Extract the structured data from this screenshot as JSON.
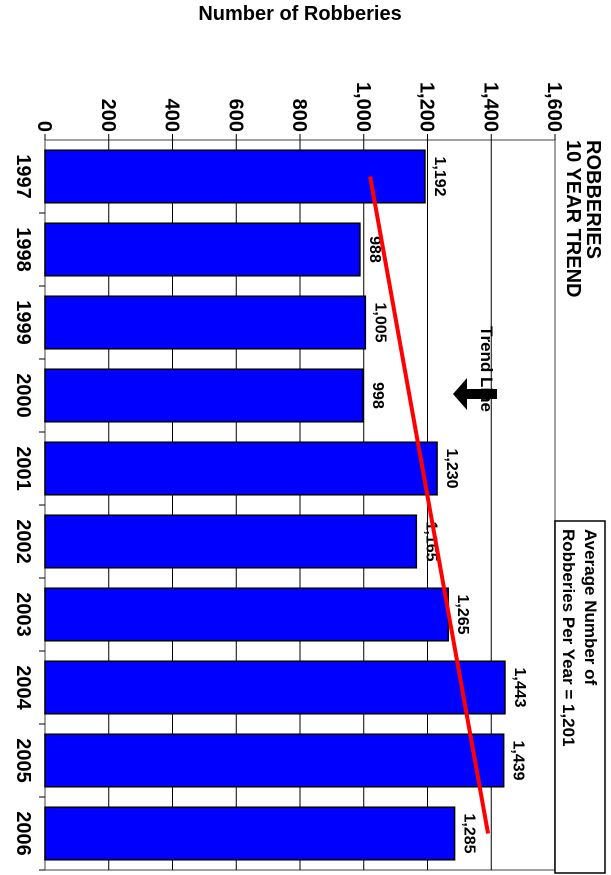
{
  "chart_data": {
    "type": "bar",
    "title": "ROBBERIES",
    "subtitle": "10 YEAR TREND",
    "ylabel": "Number of Robberies",
    "xlabel": "",
    "categories": [
      "1997",
      "1998",
      "1999",
      "2000",
      "2001",
      "2002",
      "2003",
      "2004",
      "2005",
      "2006"
    ],
    "values": [
      1192,
      988,
      1005,
      998,
      1230,
      1165,
      1265,
      1443,
      1439,
      1285
    ],
    "value_labels": [
      "1,192",
      "988",
      "1,005",
      "998",
      "1,230",
      "1,165",
      "1,265",
      "1,443",
      "1,439",
      "1,285"
    ],
    "ylim": [
      0,
      1600
    ],
    "yticks": [
      0,
      200,
      400,
      600,
      800,
      1000,
      1200,
      1400,
      1600
    ],
    "ytick_labels": [
      "0",
      "200",
      "400",
      "600",
      "800",
      "1,000",
      "1,200",
      "1,400",
      "1,600"
    ],
    "grid": true,
    "bar_color": "#0000ff",
    "trend_line": {
      "label": "Trend Line",
      "start": 1020,
      "end": 1390,
      "color": "#ff0000"
    },
    "annotation": {
      "line1": "Average Number of",
      "line2": "Robberies Per Year = 1,201"
    }
  }
}
